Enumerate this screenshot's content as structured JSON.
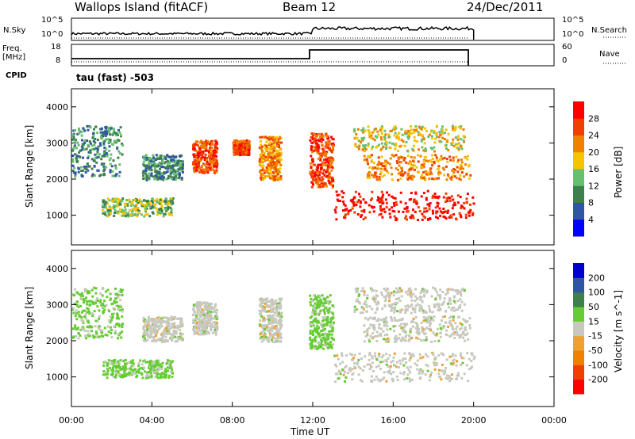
{
  "header": {
    "station": "Wallops Island (fitACF)",
    "beam": "Beam 12",
    "date": "24/Dec/2011"
  },
  "panels": {
    "nsky_label": "N.Sky",
    "nsearch_label": "N.Search",
    "freq_label_1": "Freq.",
    "freq_label_2": "[MHz]",
    "nave_label": "Nave",
    "cpid_label": "CPID",
    "cpid_value": "tau (fast) -503",
    "noise_ticks": [
      "10^5",
      "10^0"
    ],
    "freq_ticks": [
      "18",
      "8"
    ],
    "nave_ticks": [
      "60",
      "0"
    ]
  },
  "colors": {
    "power": [
      "#0000ff",
      "#2f55a5",
      "#3e7f4d",
      "#66c070",
      "#f5c400",
      "#f08000",
      "#f04000",
      "#ff0000"
    ],
    "velocity": [
      "#ff0000",
      "#f04000",
      "#f08000",
      "#f0a030",
      "#c8c8bf",
      "#66cc33",
      "#3e7f4d",
      "#2f55a5",
      "#0000cc"
    ]
  },
  "chart_data": [
    {
      "type": "heatmap",
      "name": "power",
      "ylabel": "Slant Range [km]",
      "colorbar_label": "Power [dB]",
      "colorbar_ticks": [
        4,
        8,
        12,
        16,
        20,
        24,
        28
      ],
      "clim": [
        0,
        32
      ],
      "ylim": [
        180,
        4500
      ],
      "yticks": [
        1000,
        2000,
        3000,
        4000
      ],
      "xlim": [
        0,
        24
      ],
      "regions": [
        {
          "t": [
            0.0,
            2.5
          ],
          "r": [
            2100,
            3500
          ],
          "level": 2
        },
        {
          "t": [
            1.5,
            5.0
          ],
          "r": [
            1000,
            1500
          ],
          "level": 3
        },
        {
          "t": [
            3.5,
            5.5
          ],
          "r": [
            2000,
            2700
          ],
          "level": 2
        },
        {
          "t": [
            6.0,
            7.2
          ],
          "r": [
            2200,
            3100
          ],
          "level": 6
        },
        {
          "t": [
            8.0,
            8.8
          ],
          "r": [
            2700,
            3100
          ],
          "level": 6
        },
        {
          "t": [
            9.3,
            10.4
          ],
          "r": [
            2000,
            3200
          ],
          "level": 5
        },
        {
          "t": [
            11.8,
            13.0
          ],
          "r": [
            1800,
            3300
          ],
          "level": 6
        },
        {
          "t": [
            13.0,
            20.0
          ],
          "r": [
            900,
            1700
          ],
          "level": 7
        },
        {
          "t": [
            14.5,
            19.8
          ],
          "r": [
            2000,
            2700
          ],
          "level": 5
        },
        {
          "t": [
            14.0,
            19.5
          ],
          "r": [
            2800,
            3500
          ],
          "level": 4
        }
      ]
    },
    {
      "type": "heatmap",
      "name": "velocity",
      "ylabel": "Slant Range [km]",
      "xlabel": "Time UT",
      "colorbar_label": "Velocity [m s^-1]",
      "colorbar_ticks": [
        200,
        100,
        50,
        15,
        -15,
        -50,
        -100,
        -200
      ],
      "clim": [
        -250,
        250
      ],
      "ylim": [
        180,
        4500
      ],
      "yticks": [
        1000,
        2000,
        3000,
        4000
      ],
      "xlim": [
        0,
        24
      ],
      "xticks": [
        "00:00",
        "04:00",
        "08:00",
        "12:00",
        "16:00",
        "20:00",
        "00:00"
      ],
      "regions": [
        {
          "t": [
            0.0,
            2.5
          ],
          "r": [
            2100,
            3500
          ],
          "vel": 40
        },
        {
          "t": [
            1.5,
            5.0
          ],
          "r": [
            1000,
            1500
          ],
          "vel": 40
        },
        {
          "t": [
            3.5,
            5.5
          ],
          "r": [
            2000,
            2700
          ],
          "vel": 0
        },
        {
          "t": [
            6.0,
            7.2
          ],
          "r": [
            2200,
            3100
          ],
          "vel": 0
        },
        {
          "t": [
            9.3,
            10.4
          ],
          "r": [
            2000,
            3200
          ],
          "vel": 0
        },
        {
          "t": [
            11.8,
            13.0
          ],
          "r": [
            1800,
            3300
          ],
          "vel": 40
        },
        {
          "t": [
            13.0,
            20.0
          ],
          "r": [
            900,
            1700
          ],
          "vel": 0
        },
        {
          "t": [
            14.5,
            19.8
          ],
          "r": [
            2000,
            2700
          ],
          "vel": 0
        },
        {
          "t": [
            14.0,
            19.5
          ],
          "r": [
            2800,
            3500
          ],
          "vel": 0
        }
      ]
    }
  ]
}
